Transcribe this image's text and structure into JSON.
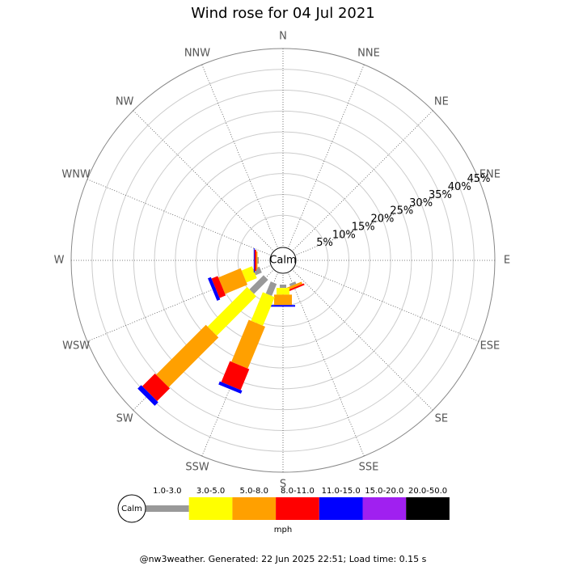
{
  "chart_data": {
    "type": "windrose",
    "title": "Wind rose for 04 Jul 2021",
    "categories": [
      "N",
      "NNE",
      "NE",
      "ENE",
      "E",
      "ESE",
      "SE",
      "SSE",
      "S",
      "SSW",
      "SW",
      "WSW",
      "W",
      "WNW",
      "NW",
      "NNW"
    ],
    "calm_label": "Calm",
    "unit_label": "mph",
    "rlim": [
      0,
      45
    ],
    "rticks": [
      {
        "value": 5,
        "label": "5%"
      },
      {
        "value": 10,
        "label": "10%"
      },
      {
        "value": 15,
        "label": "15%"
      },
      {
        "value": 20,
        "label": "20%"
      },
      {
        "value": 25,
        "label": "25%"
      },
      {
        "value": 30,
        "label": "30%"
      },
      {
        "value": 35,
        "label": "35%"
      },
      {
        "value": 40,
        "label": "40%"
      },
      {
        "value": 45,
        "label": "45%"
      }
    ],
    "grid": true,
    "series": [
      {
        "name": "1.0-3.0",
        "color": "#999999",
        "values": [
          0,
          0,
          0,
          0,
          0,
          0,
          0,
          0.6,
          0.8,
          3.1,
          4.8,
          1.6,
          0.3,
          0,
          0,
          0
        ]
      },
      {
        "name": "3.0-5.0",
        "color": "#ffff00",
        "values": [
          0,
          0,
          0,
          0,
          0,
          0,
          0,
          0,
          1.6,
          7.4,
          13.4,
          2.7,
          0,
          0,
          0,
          0
        ]
      },
      {
        "name": "5.0-8.0",
        "color": "#ffa000",
        "values": [
          0,
          0,
          0,
          0,
          0,
          0,
          0,
          0.6,
          2.5,
          10.9,
          16.9,
          5.8,
          0.3,
          0,
          0,
          0
        ]
      },
      {
        "name": "8.0-11.0",
        "color": "#ff0000",
        "values": [
          0,
          0,
          0,
          0,
          0,
          0,
          0,
          0.4,
          0,
          5.4,
          4.3,
          1.6,
          0.4,
          0,
          0,
          0
        ]
      },
      {
        "name": "11.0-15.0",
        "color": "#0000ff",
        "values": [
          0,
          0,
          0,
          0,
          0,
          0,
          0,
          0,
          0.4,
          0.8,
          1.2,
          0.8,
          0.2,
          0,
          0,
          0
        ]
      },
      {
        "name": "15.0-20.0",
        "color": "#a020f0",
        "values": [
          0,
          0,
          0,
          0,
          0,
          0,
          0,
          0,
          0,
          0,
          0,
          0,
          0,
          0,
          0,
          0
        ]
      },
      {
        "name": "20.0-50.0",
        "color": "#000000",
        "values": [
          0,
          0,
          0,
          0,
          0,
          0,
          0,
          0,
          0,
          0,
          0,
          0,
          0,
          0,
          0,
          0
        ]
      }
    ],
    "footer": "@nw3weather. Generated: 22 Jun 2025 22:51; Load time: 0.15 s"
  }
}
